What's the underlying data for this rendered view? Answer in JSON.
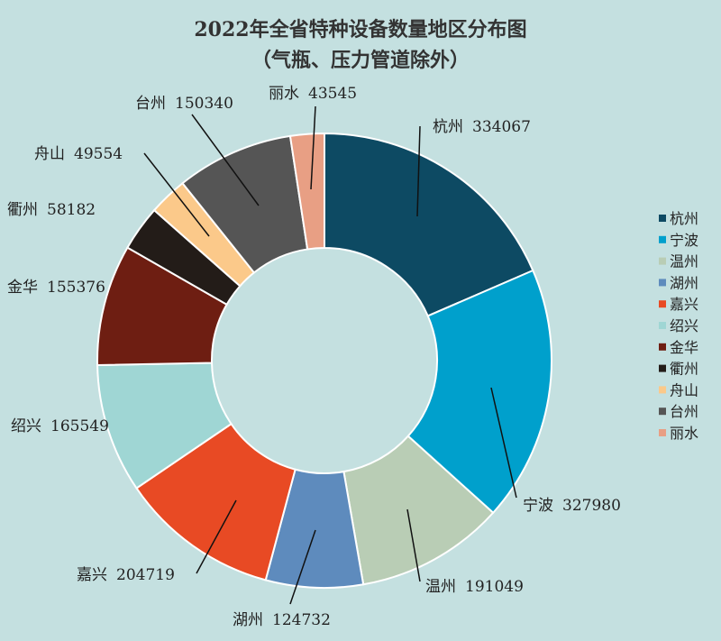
{
  "chart_data": {
    "type": "donut",
    "title": "2022年全省特种设备数量地区分布图",
    "subtitle": "（气瓶、压力管道除外）",
    "categories": [
      "杭州",
      "宁波",
      "温州",
      "湖州",
      "嘉兴",
      "绍兴",
      "金华",
      "衢州",
      "舟山",
      "台州",
      "丽水"
    ],
    "values": [
      334067,
      327980,
      191049,
      124732,
      204719,
      165549,
      155376,
      58182,
      49554,
      150340,
      43545
    ],
    "colors": [
      "#0d4a63",
      "#00a0cc",
      "#b9cdb5",
      "#5e8bbd",
      "#e84a24",
      "#9fd6d4",
      "#6e1e12",
      "#231c18",
      "#fbc98a",
      "#555555",
      "#e89f84"
    ],
    "legend": "right"
  }
}
